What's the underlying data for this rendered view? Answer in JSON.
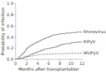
{
  "chart_data": {
    "type": "line",
    "xlabel": "Months after transplantation",
    "ylabel": "Probability of infection",
    "xlim": [
      0,
      12
    ],
    "ylim": [
      0,
      1.0
    ],
    "xticks": [
      0,
      2,
      4,
      6,
      8,
      10,
      12
    ],
    "yticks": [
      {
        "value": 0.0,
        "label": "0.0"
      },
      0.2,
      0.4,
      0.6,
      0.8,
      {
        "value": 1.0,
        "label": "1.0"
      }
    ],
    "series": [
      {
        "name": "Rhinovirus",
        "type": "step",
        "line_style": "solid",
        "color": "#888888",
        "x": [
          0,
          0.2,
          0.4,
          0.6,
          0.8,
          1.0,
          1.2,
          1.4,
          1.6,
          1.8,
          2.0,
          2.3,
          2.6,
          3.0,
          3.4,
          3.8,
          4.2,
          4.6,
          5.0,
          5.5,
          6.0,
          6.5,
          7.0,
          7.5,
          8.0,
          9.0,
          10.0,
          11.0,
          12.0
        ],
        "values": [
          0.0,
          0.01,
          0.02,
          0.04,
          0.06,
          0.08,
          0.1,
          0.12,
          0.14,
          0.17,
          0.2,
          0.22,
          0.25,
          0.27,
          0.29,
          0.31,
          0.33,
          0.35,
          0.37,
          0.39,
          0.41,
          0.43,
          0.44,
          0.45,
          0.46,
          0.47,
          0.48,
          0.49,
          0.5
        ]
      },
      {
        "name": "KIPyV",
        "type": "step",
        "line_style": "solid",
        "color": "#888888",
        "x": [
          0,
          0.5,
          1.0,
          1.5,
          2.0,
          2.5,
          3.0,
          3.5,
          4.0,
          4.5,
          5.0,
          5.5,
          6.0,
          6.5,
          7.0,
          7.5,
          8.0,
          8.5,
          9.0,
          10.0,
          11.0,
          12.0
        ],
        "values": [
          0.0,
          0.01,
          0.02,
          0.04,
          0.06,
          0.08,
          0.1,
          0.12,
          0.14,
          0.16,
          0.18,
          0.19,
          0.2,
          0.21,
          0.22,
          0.24,
          0.26,
          0.27,
          0.28,
          0.3,
          0.31,
          0.32
        ]
      },
      {
        "name": "WUPyV",
        "type": "line",
        "line_style": "dashed",
        "color": "#888888",
        "x": [
          0,
          0.5,
          1.0,
          1.5,
          2.0,
          2.5,
          3.0,
          3.5,
          4.0,
          5.0,
          6.0,
          7.0,
          8.0,
          9.0,
          10.0,
          11.0,
          12.0
        ],
        "values": [
          0.0,
          0.01,
          0.02,
          0.03,
          0.04,
          0.05,
          0.06,
          0.07,
          0.08,
          0.09,
          0.09,
          0.1,
          0.1,
          0.1,
          0.11,
          0.11,
          0.11
        ]
      }
    ]
  }
}
